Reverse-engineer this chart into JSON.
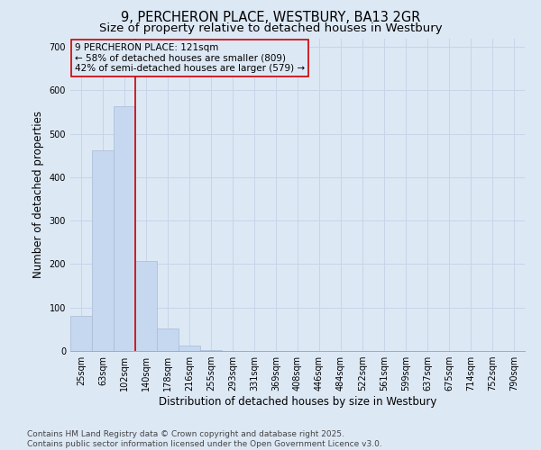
{
  "title": "9, PERCHERON PLACE, WESTBURY, BA13 2GR",
  "subtitle": "Size of property relative to detached houses in Westbury",
  "xlabel": "Distribution of detached houses by size in Westbury",
  "ylabel": "Number of detached properties",
  "categories": [
    "25sqm",
    "63sqm",
    "102sqm",
    "140sqm",
    "178sqm",
    "216sqm",
    "255sqm",
    "293sqm",
    "331sqm",
    "369sqm",
    "408sqm",
    "446sqm",
    "484sqm",
    "522sqm",
    "561sqm",
    "599sqm",
    "637sqm",
    "675sqm",
    "714sqm",
    "752sqm",
    "790sqm"
  ],
  "values": [
    80,
    462,
    563,
    207,
    52,
    13,
    3,
    0,
    0,
    0,
    0,
    0,
    0,
    0,
    0,
    0,
    0,
    0,
    0,
    0,
    0
  ],
  "bar_color": "#c5d8f0",
  "bar_edge_color": "#aabbd4",
  "grid_color": "#c8d4e8",
  "background_color": "#dde8f5",
  "vline_color": "#cc0000",
  "vline_x_index": 2.5,
  "annotation_text": "9 PERCHERON PLACE: 121sqm\n← 58% of detached houses are smaller (809)\n42% of semi-detached houses are larger (579) →",
  "annotation_box_color": "#cc0000",
  "ylim": [
    0,
    720
  ],
  "yticks": [
    0,
    100,
    200,
    300,
    400,
    500,
    600,
    700
  ],
  "footer_line1": "Contains HM Land Registry data © Crown copyright and database right 2025.",
  "footer_line2": "Contains public sector information licensed under the Open Government Licence v3.0.",
  "title_fontsize": 10.5,
  "subtitle_fontsize": 9.5,
  "axis_label_fontsize": 8.5,
  "tick_fontsize": 7,
  "annotation_fontsize": 7.5,
  "footer_fontsize": 6.5
}
